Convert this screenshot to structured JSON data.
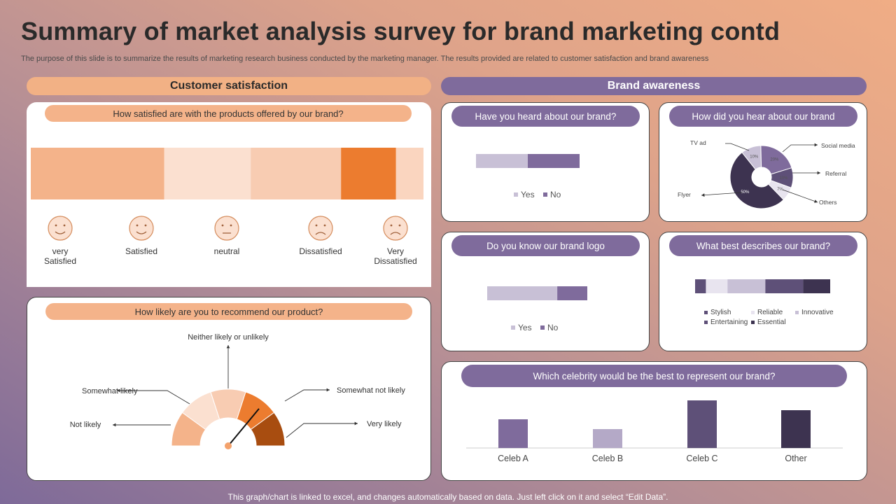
{
  "title": "Summary of market analysis survey for brand marketing contd",
  "subtitle": "The purpose of this slide is to summarize the results of marketing research business conducted by the marketing manager. The results provided are related to customer satisfaction and brand awareness",
  "sections": {
    "customer_satisfaction": "Customer satisfaction",
    "brand_awareness": "Brand awareness"
  },
  "footer": "This graph/chart is linked to excel, and changes automatically based on data. Just left click on it and select “Edit Data”.",
  "colors": {
    "orange_light": "#f4b38a",
    "orange_dark": "#ec7c2f",
    "orange_pale": "#fbe0d0",
    "purple": "#7f6b9c",
    "purple_light": "#c8c0d6",
    "purple_dark": "#3d3350",
    "purple_mid": "#5e5078"
  },
  "satisfaction": {
    "question": "How satisfied are with the products offered  by our brand?",
    "icon": "smiley-face-icon",
    "labels": [
      "very\nSatisfied",
      "Satisfied",
      "neutral",
      "Dissatisfied",
      "Very\nDissatisfied"
    ]
  },
  "recommend": {
    "question": "How likely are you to recommend our product?",
    "labels": [
      "Not likely",
      "Somewhat likely",
      "Neither likely or unlikely",
      "Somewhat not likely",
      "Very likely"
    ]
  },
  "heard": {
    "question": "Have you heard about our brand?"
  },
  "logo": {
    "question": "Do you know our brand logo"
  },
  "how_hear": {
    "question": "How did you hear about our brand"
  },
  "describes": {
    "question": "What best describes our brand?"
  },
  "celebrity": {
    "question": "Which celebrity would be the best to represent our brand?"
  },
  "chart_data": [
    {
      "type": "bar",
      "orientation": "horizontal-stacked",
      "categories": [
        "very Satisfied",
        "Satisfied",
        "neutral",
        "Dissatisfied",
        "Very Dissatisfied"
      ],
      "values": [
        34,
        22,
        23,
        14,
        7
      ],
      "colors": [
        "#f4b38a",
        "#fbe0d0",
        "#f8ccb2",
        "#ec7c2f",
        "#fad5bf"
      ]
    },
    {
      "type": "pie",
      "style": "gauge",
      "categories": [
        "Not likely",
        "Somewhat likely",
        "Neither likely or unlikely",
        "Somewhat not likely",
        "Very likely"
      ],
      "values": [
        20,
        20,
        20,
        20,
        20
      ],
      "colors": [
        "#f4b38a",
        "#fbe0d0",
        "#f8ccb2",
        "#ec7c2f",
        "#a84d10"
      ],
      "needle_value": 0.72
    },
    {
      "type": "bar",
      "orientation": "horizontal-stacked",
      "categories": [
        "Yes",
        "No"
      ],
      "values": [
        50,
        50
      ],
      "colors": [
        "#c8c0d6",
        "#7f6b9c"
      ]
    },
    {
      "type": "pie",
      "style": "donut",
      "categories": [
        "TV ad",
        "Social media",
        "Referral",
        "Others",
        "Flyer"
      ],
      "values": [
        10,
        20,
        10,
        7,
        50
      ],
      "data_labels": [
        "10%",
        "20%",
        "10%",
        "7%",
        "50%"
      ],
      "colors": [
        "#c8c0d6",
        "#7f6b9c",
        "#5e5078",
        "#e8e4ef",
        "#3d3350"
      ]
    },
    {
      "type": "bar",
      "orientation": "horizontal-stacked",
      "categories": [
        "Yes",
        "No"
      ],
      "values": [
        70,
        30
      ],
      "colors": [
        "#c8c0d6",
        "#7f6b9c"
      ]
    },
    {
      "type": "bar",
      "orientation": "horizontal-stacked",
      "categories": [
        "Stylish",
        "Reliable",
        "Innovative",
        "Entertaining",
        "Essential"
      ],
      "values": [
        8,
        16,
        28,
        28,
        20
      ],
      "colors": [
        "#5e5078",
        "#e8e4ef",
        "#c8c0d6",
        "#5e5078",
        "#3d3350"
      ]
    },
    {
      "type": "bar",
      "categories": [
        "Celeb A",
        "Celeb B",
        "Celeb C",
        "Other"
      ],
      "values": [
        41,
        27,
        68,
        54
      ],
      "colors": [
        "#7f6b9c",
        "#b4a9c7",
        "#5e5078",
        "#3d3350"
      ]
    }
  ]
}
